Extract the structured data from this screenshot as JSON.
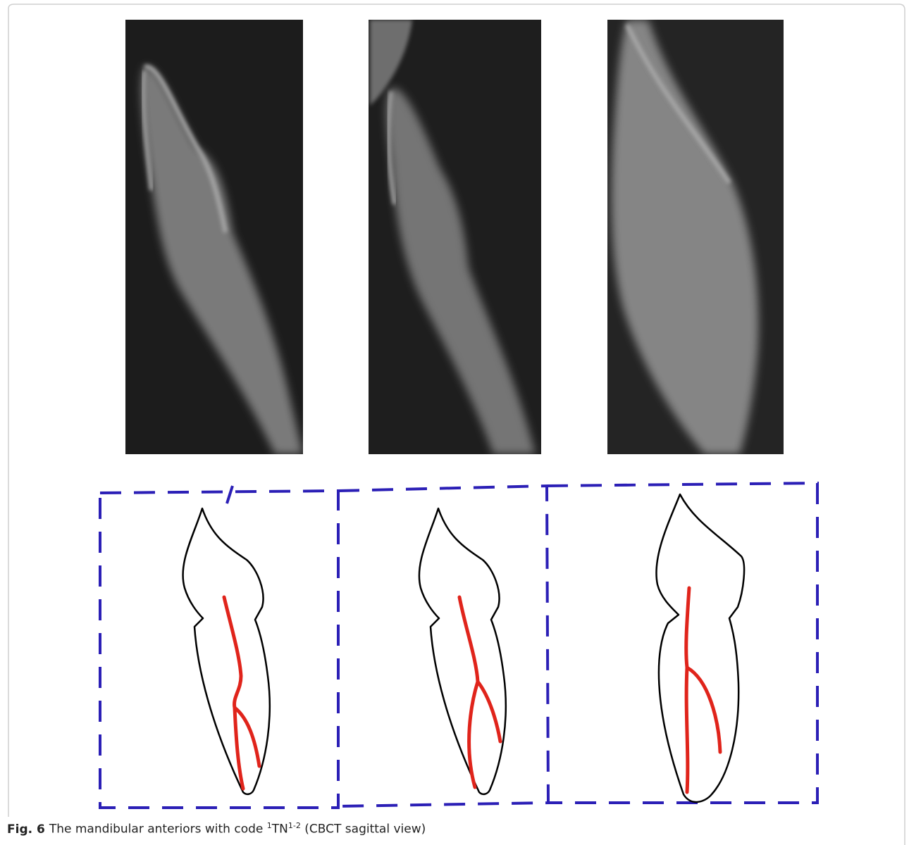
{
  "figure": {
    "label": "Fig. 6",
    "caption": {
      "before": "The mandibular anteriors with code",
      "pre_superscript": "1",
      "code": "TN",
      "superscript": "1-2",
      "after": "(CBCT sagittal view)"
    }
  }
}
